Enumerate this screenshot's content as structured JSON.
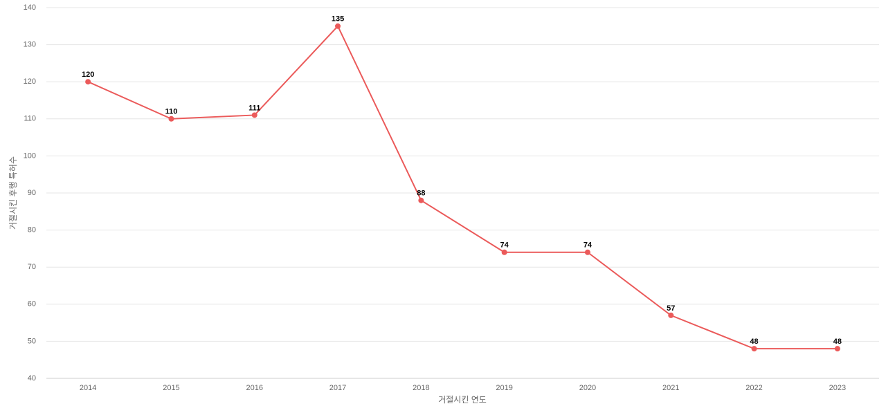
{
  "chart_data": {
    "type": "line",
    "x_label": "거절시킨 연도",
    "y_label": "거절시킨 후행 특허수",
    "categories": [
      "2014",
      "2015",
      "2016",
      "2017",
      "2018",
      "2019",
      "2020",
      "2021",
      "2022",
      "2023"
    ],
    "values": [
      120,
      110,
      111,
      135,
      88,
      74,
      74,
      57,
      48,
      48
    ],
    "color": "#eb5a5a",
    "ylim": [
      40,
      140
    ],
    "yticks": [
      40,
      50,
      60,
      70,
      80,
      90,
      100,
      110,
      120,
      130,
      140
    ],
    "grid": true
  }
}
